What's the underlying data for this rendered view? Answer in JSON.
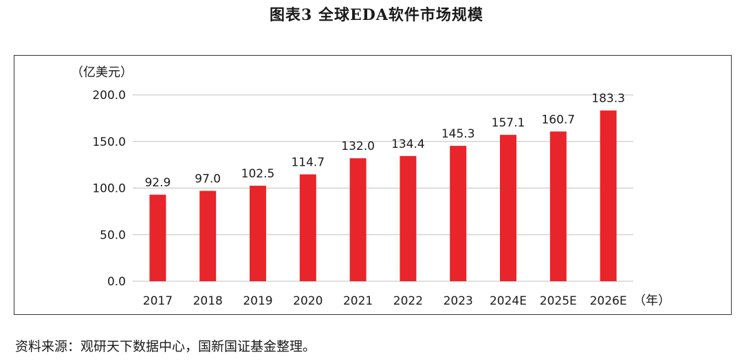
{
  "figure": {
    "title": "图表3  全球EDA软件市场规模",
    "source": "资料来源：观研天下数据中心，国新国证基金整理。"
  },
  "colors": {
    "bar": "#e8252a",
    "grid": "#bfbfbf",
    "text": "#1a1a1a"
  },
  "chart_data": {
    "type": "bar",
    "categories": [
      "2017",
      "2018",
      "2019",
      "2020",
      "2021",
      "2022",
      "2023",
      "2024E",
      "2025E",
      "2026E"
    ],
    "series": [
      {
        "values": [
          92.9,
          97.0,
          102.5,
          114.7,
          132.0,
          134.4,
          145.3,
          157.1,
          160.7,
          183.3
        ]
      }
    ],
    "data_labels": [
      "92.9",
      "97.0",
      "102.5",
      "114.7",
      "132.0",
      "134.4",
      "145.3",
      "157.1",
      "160.7",
      "183.3"
    ],
    "ylabel": "（亿美元）",
    "xlabel": "（年）",
    "ylim": [
      0,
      200
    ],
    "yticks": [
      0,
      50,
      100,
      150,
      200
    ],
    "ytick_labels": [
      "0.0",
      "50.0",
      "100.0",
      "150.0",
      "200.0"
    ],
    "grid": true,
    "legend": "none"
  }
}
